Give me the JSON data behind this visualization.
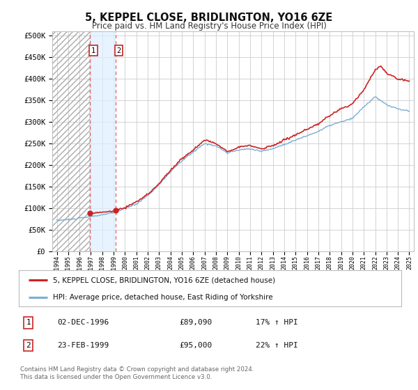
{
  "title": "5, KEPPEL CLOSE, BRIDLINGTON, YO16 6ZE",
  "subtitle": "Price paid vs. HM Land Registry's House Price Index (HPI)",
  "title_fontsize": 10.5,
  "subtitle_fontsize": 8.5,
  "yticks": [
    0,
    50000,
    100000,
    150000,
    200000,
    250000,
    300000,
    350000,
    400000,
    450000,
    500000
  ],
  "ytick_labels": [
    "£0",
    "£50K",
    "£100K",
    "£150K",
    "£200K",
    "£250K",
    "£300K",
    "£350K",
    "£400K",
    "£450K",
    "£500K"
  ],
  "xlim_start": 1993.6,
  "xlim_end": 2025.4,
  "ylim_min": 0,
  "ylim_max": 510000,
  "hpi_color": "#7aaed4",
  "price_color": "#cc2222",
  "transaction1": {
    "date_num": 1996.92,
    "price": 89090,
    "label": "1",
    "date_str": "02-DEC-1996",
    "pct": "17% ↑ HPI"
  },
  "transaction2": {
    "date_num": 1999.15,
    "price": 95000,
    "label": "2",
    "date_str": "23-FEB-1999",
    "pct": "22% ↑ HPI"
  },
  "legend_line1": "5, KEPPEL CLOSE, BRIDLINGTON, YO16 6ZE (detached house)",
  "legend_line2": "HPI: Average price, detached house, East Riding of Yorkshire",
  "footer": "Contains HM Land Registry data © Crown copyright and database right 2024.\nThis data is licensed under the Open Government Licence v3.0.",
  "background_color": "#ffffff",
  "grid_color": "#cccccc",
  "hatch_left_end": 1996.5,
  "hatch_between_start": 1996.92,
  "hatch_between_end": 1999.15
}
